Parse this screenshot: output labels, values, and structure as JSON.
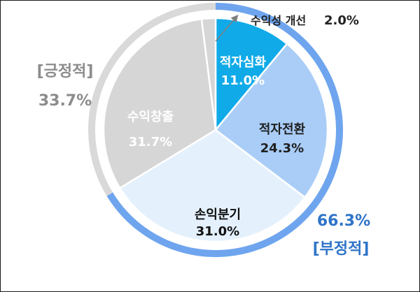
{
  "chart_data": {
    "type": "pie",
    "slices": [
      {
        "label": "적자심화",
        "value": 11.0,
        "value_label": "11.0%",
        "color": "#10aae8",
        "text_color": "#ffffff"
      },
      {
        "label": "적자전환",
        "value": 24.3,
        "value_label": "24.3%",
        "color": "#a9cdf7",
        "text_color": "#1f1f1f"
      },
      {
        "label": "손익분기",
        "value": 31.0,
        "value_label": "31.0%",
        "color": "#e4f1fd",
        "text_color": "#111111"
      },
      {
        "label": "수익창출",
        "value": 31.7,
        "value_label": "31.7%",
        "color": "#d6d6d6",
        "text_color": "#ffffff"
      },
      {
        "label": "수익성 개선",
        "value": 2.0,
        "value_label": "2.0%",
        "color": "#d6d6d6",
        "text_color": "#222222"
      }
    ],
    "groups": [
      {
        "name": "[부정적]",
        "value_label": "66.3%",
        "ring_color": "#6ea5ee",
        "text_color": "#2f74c9",
        "slice_indices": [
          0,
          1,
          2
        ]
      },
      {
        "name": "[긍정적]",
        "value_label": "33.7%",
        "ring_color": "#d9d9d9",
        "text_color": "#8c8c8c",
        "slice_indices": [
          3,
          4
        ]
      }
    ],
    "start_angle_deg": 0,
    "direction": "clockwise"
  }
}
